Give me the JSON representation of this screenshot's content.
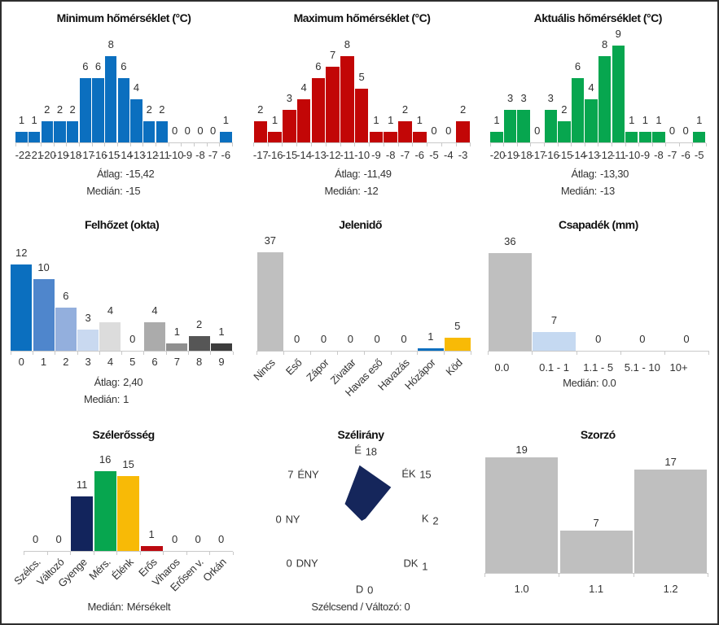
{
  "page": {
    "background": "#ffffff",
    "border_color": "#2e2e2e"
  },
  "chart_data": [
    {
      "id": "minimum-homerseklet",
      "type": "bar",
      "title": "Minimum hőmérséklet (°C)",
      "categories": [
        "-22",
        "-21",
        "-20",
        "-19",
        "-18",
        "-17",
        "-16",
        "-15",
        "-14",
        "-13",
        "-12",
        "-11",
        "-10",
        "-9",
        "-8",
        "-7",
        "-6"
      ],
      "values": [
        1,
        1,
        2,
        2,
        2,
        6,
        6,
        8,
        6,
        4,
        2,
        2,
        0,
        0,
        0,
        0,
        1
      ],
      "bar_color": "#0b6fbf",
      "ylim": [
        0,
        9
      ],
      "grid": false,
      "value_labels": true,
      "stats": [
        {
          "label": "Átlag:",
          "value": "-15,42"
        },
        {
          "label": "Medián:",
          "value": "-15"
        }
      ]
    },
    {
      "id": "maximum-homerseklet",
      "type": "bar",
      "title": "Maximum hőmérséklet (°C)",
      "categories": [
        "-17",
        "-16",
        "-15",
        "-14",
        "-13",
        "-12",
        "-11",
        "-10",
        "-9",
        "-8",
        "-7",
        "-6",
        "-5",
        "-4",
        "-3"
      ],
      "values": [
        2,
        1,
        3,
        4,
        6,
        7,
        8,
        5,
        1,
        1,
        2,
        1,
        0,
        0,
        2
      ],
      "bar_color": "#c20606",
      "ylim": [
        0,
        9
      ],
      "grid": false,
      "value_labels": true,
      "stats": [
        {
          "label": "Átlag:",
          "value": "-11,49"
        },
        {
          "label": "Medián:",
          "value": "-12"
        }
      ]
    },
    {
      "id": "aktualis-homerseklet",
      "type": "bar",
      "title": "Aktuális hőmérséklet (°C)",
      "categories": [
        "-20",
        "-19",
        "-18",
        "-17",
        "-16",
        "-15",
        "-14",
        "-13",
        "-12",
        "-11",
        "-10",
        "-9",
        "-8",
        "-7",
        "-6",
        "-5"
      ],
      "values": [
        1,
        3,
        3,
        0,
        3,
        2,
        6,
        4,
        8,
        9,
        1,
        1,
        1,
        0,
        0,
        1
      ],
      "bar_color": "#07a64f",
      "ylim": [
        0,
        9
      ],
      "grid": false,
      "value_labels": true,
      "stats": [
        {
          "label": "Átlag:",
          "value": "-13,30"
        },
        {
          "label": "Medián:",
          "value": "-13"
        }
      ]
    },
    {
      "id": "felhozet",
      "type": "bar",
      "title": "Felhőzet (okta)",
      "categories": [
        "0",
        "1",
        "2",
        "3",
        "4",
        "5",
        "6",
        "7",
        "8",
        "9"
      ],
      "values": [
        12,
        10,
        6,
        3,
        4,
        0,
        4,
        1,
        2,
        1
      ],
      "bar_colors": [
        "#0b6fbf",
        "#4f86cc",
        "#93afdd",
        "#c9d9f0",
        "#dcdcdc",
        "#ffffff",
        "#ababab",
        "#8f8f8f",
        "#565656",
        "#3c3c3c"
      ],
      "ylim": [
        0,
        12
      ],
      "grid": false,
      "value_labels": true,
      "stats": [
        {
          "label": "Átlag:",
          "value": "2,40"
        },
        {
          "label": "Medián:",
          "value": "1"
        }
      ]
    },
    {
      "id": "jelenido",
      "type": "bar",
      "title": "Jelenidő",
      "categories": [
        "Nincs",
        "Eső",
        "Zápor",
        "Zivatar",
        "Havas eső",
        "Havazás",
        "Hózápor",
        "Köd"
      ],
      "values": [
        37,
        0,
        0,
        0,
        0,
        0,
        1,
        5
      ],
      "bar_colors": [
        "#bfbfbf",
        "#bfbfbf",
        "#bfbfbf",
        "#bfbfbf",
        "#bfbfbf",
        "#bfbfbf",
        "#0b6fbf",
        "#f8ba06"
      ],
      "ylim": [
        0,
        37
      ],
      "grid": false,
      "value_labels": true,
      "label_rotation": 45,
      "stats": []
    },
    {
      "id": "csapadek",
      "type": "bar",
      "title": "Csapadék (mm)",
      "categories": [
        "0.0",
        "0.1 - 1",
        "1.1 - 5",
        "5.1 - 10",
        "10+"
      ],
      "values": [
        36,
        7,
        0,
        0,
        0
      ],
      "bar_colors": [
        "#bfbfbf",
        "#c5d9f1",
        "#bfbfbf",
        "#bfbfbf",
        "#bfbfbf"
      ],
      "ylim": [
        0,
        36
      ],
      "grid": false,
      "value_labels": true,
      "stats": [
        {
          "label": "Medián:",
          "value": "0.0"
        }
      ]
    },
    {
      "id": "szelerosseg",
      "type": "bar",
      "title": "Szélerősség",
      "categories": [
        "Szélcs.",
        "Változó",
        "Gyenge",
        "Mérs.",
        "Élénk",
        "Erős",
        "Viharos",
        "Erősen v.",
        "Orkán"
      ],
      "values": [
        0,
        0,
        11,
        16,
        15,
        1,
        0,
        0,
        0
      ],
      "bar_colors": [
        "#bfbfbf",
        "#bfbfbf",
        "#12245c",
        "#07a64f",
        "#f8ba06",
        "#bc0a10",
        "#bfbfbf",
        "#bfbfbf",
        "#bfbfbf"
      ],
      "ylim": [
        0,
        16
      ],
      "grid": false,
      "value_labels": true,
      "label_rotation": 45,
      "stats": [
        {
          "label": "Medián:",
          "value": "Mérsékelt"
        }
      ]
    },
    {
      "id": "szelirany",
      "type": "radar",
      "title": "Szélirány",
      "categories": [
        "É",
        "ÉK",
        "K",
        "DK",
        "D",
        "DNY",
        "NY",
        "ÉNY"
      ],
      "values": [
        18,
        15,
        2,
        1,
        0,
        0,
        0,
        7
      ],
      "fill_color": "#15265b",
      "rmax": 18,
      "footer": {
        "label": "Szélcsend / Változó:",
        "value": "0"
      }
    },
    {
      "id": "szorzo",
      "type": "bar",
      "title": "Szorzó",
      "categories": [
        "1.0",
        "1.1",
        "1.2"
      ],
      "values": [
        19,
        7,
        17
      ],
      "bar_color": "#bfbfbf",
      "ylim": [
        0,
        19
      ],
      "grid": false,
      "value_labels": true,
      "stats": []
    }
  ]
}
